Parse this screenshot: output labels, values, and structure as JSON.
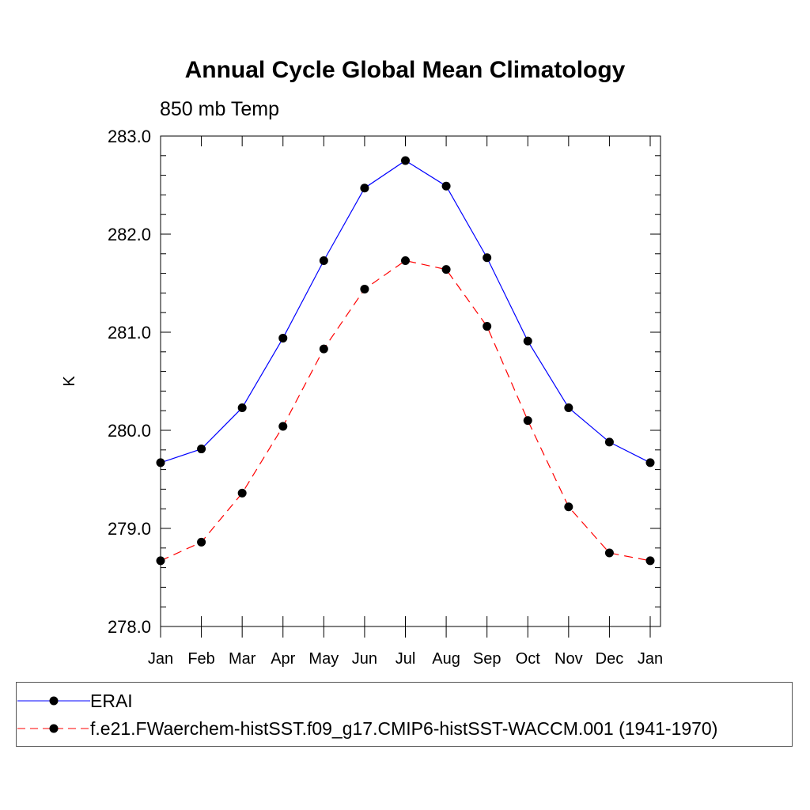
{
  "chart_data": {
    "type": "line",
    "title": "Annual Cycle Global Mean Climatology",
    "subtitle": "850 mb Temp",
    "xlabel": "",
    "ylabel": "K",
    "categories": [
      "Jan",
      "Feb",
      "Mar",
      "Apr",
      "May",
      "Jun",
      "Jul",
      "Aug",
      "Sep",
      "Oct",
      "Nov",
      "Dec",
      "Jan"
    ],
    "ylim": [
      278.0,
      283.0
    ],
    "yticks": [
      "278.0",
      "279.0",
      "280.0",
      "281.0",
      "282.0",
      "283.0"
    ],
    "grid": false,
    "legend_placement": "bottom",
    "series": [
      {
        "name": "ERAI",
        "color": "#0000ff",
        "line_style": "solid",
        "marker": "filled-circle",
        "values": [
          279.67,
          279.81,
          280.23,
          280.94,
          281.73,
          282.47,
          282.75,
          282.49,
          281.76,
          280.91,
          280.23,
          279.88,
          279.67
        ]
      },
      {
        "name": "f.e21.FWaerchem-histSST.f09_g17.CMIP6-histSST-WACCM.001 (1941-1970)",
        "color": "#ff0000",
        "line_style": "dashed",
        "marker": "filled-circle",
        "values": [
          278.67,
          278.86,
          279.36,
          280.04,
          280.83,
          281.44,
          281.73,
          281.64,
          281.06,
          280.1,
          279.22,
          278.75,
          278.67
        ]
      }
    ]
  }
}
